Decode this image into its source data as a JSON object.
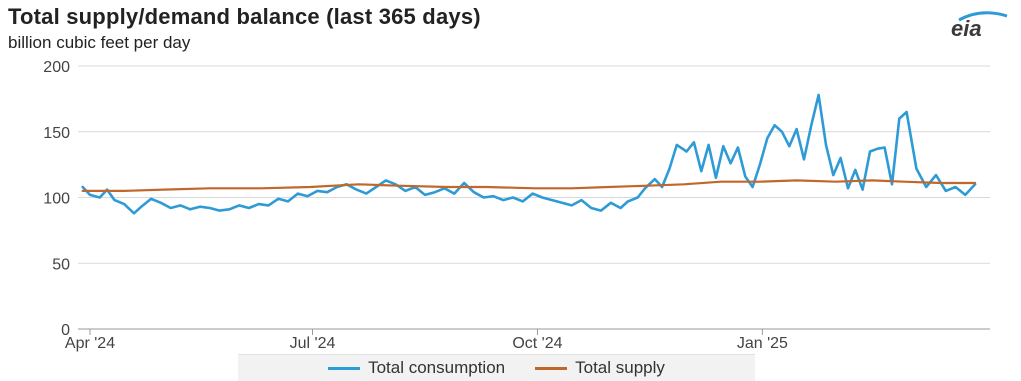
{
  "header": {
    "title": "Total supply/demand balance (last 365 days)",
    "subtitle": "billion cubic feet per day",
    "logo_text": "eia"
  },
  "colors": {
    "consumption": "#2e9bd6",
    "supply": "#c0672b",
    "grid": "#d9d9d9"
  },
  "chart_data": {
    "type": "line",
    "title": "Total supply/demand balance (last 365 days)",
    "ylabel": "billion cubic feet per day",
    "xlabel": "",
    "ylim": [
      0,
      200
    ],
    "yticks": [
      0,
      50,
      100,
      150,
      200
    ],
    "xlim": [
      "2024-04-01",
      "2025-03-31"
    ],
    "xticks": [
      {
        "date": "2024-04-01",
        "label": "Apr '24"
      },
      {
        "date": "2024-07-01",
        "label": "Jul '24"
      },
      {
        "date": "2024-10-01",
        "label": "Oct '24"
      },
      {
        "date": "2025-01-01",
        "label": "Jan '25"
      }
    ],
    "grid": "horizontal",
    "legend": "bottom",
    "series": [
      {
        "name": "Total consumption",
        "x": [
          "2024-03-29",
          "2024-04-01",
          "2024-04-05",
          "2024-04-08",
          "2024-04-11",
          "2024-04-15",
          "2024-04-19",
          "2024-04-22",
          "2024-04-26",
          "2024-04-30",
          "2024-05-04",
          "2024-05-08",
          "2024-05-12",
          "2024-05-16",
          "2024-05-20",
          "2024-05-24",
          "2024-05-28",
          "2024-06-01",
          "2024-06-05",
          "2024-06-09",
          "2024-06-13",
          "2024-06-17",
          "2024-06-21",
          "2024-06-25",
          "2024-06-29",
          "2024-07-03",
          "2024-07-07",
          "2024-07-11",
          "2024-07-15",
          "2024-07-19",
          "2024-07-23",
          "2024-07-27",
          "2024-07-31",
          "2024-08-04",
          "2024-08-08",
          "2024-08-12",
          "2024-08-16",
          "2024-08-20",
          "2024-08-24",
          "2024-08-28",
          "2024-09-01",
          "2024-09-05",
          "2024-09-09",
          "2024-09-13",
          "2024-09-17",
          "2024-09-21",
          "2024-09-25",
          "2024-09-29",
          "2024-10-03",
          "2024-10-07",
          "2024-10-11",
          "2024-10-15",
          "2024-10-19",
          "2024-10-23",
          "2024-10-27",
          "2024-10-31",
          "2024-11-04",
          "2024-11-07",
          "2024-11-11",
          "2024-11-14",
          "2024-11-18",
          "2024-11-21",
          "2024-11-24",
          "2024-11-27",
          "2024-12-01",
          "2024-12-04",
          "2024-12-07",
          "2024-12-10",
          "2024-12-13",
          "2024-12-16",
          "2024-12-19",
          "2024-12-22",
          "2024-12-25",
          "2024-12-28",
          "2024-12-31",
          "2025-01-03",
          "2025-01-06",
          "2025-01-09",
          "2025-01-12",
          "2025-01-15",
          "2025-01-18",
          "2025-01-21",
          "2025-01-24",
          "2025-01-27",
          "2025-01-30",
          "2025-02-02",
          "2025-02-05",
          "2025-02-08",
          "2025-02-11",
          "2025-02-14",
          "2025-02-17",
          "2025-02-20",
          "2025-02-23",
          "2025-02-26",
          "2025-03-01",
          "2025-03-05",
          "2025-03-09",
          "2025-03-13",
          "2025-03-17",
          "2025-03-21",
          "2025-03-25",
          "2025-03-29"
        ],
        "y": [
          108,
          102,
          100,
          106,
          98,
          95,
          88,
          93,
          99,
          96,
          92,
          94,
          91,
          93,
          92,
          90,
          91,
          94,
          92,
          95,
          94,
          99,
          97,
          103,
          101,
          105,
          104,
          108,
          110,
          106,
          103,
          108,
          113,
          110,
          105,
          108,
          102,
          104,
          107,
          103,
          111,
          104,
          100,
          101,
          98,
          100,
          97,
          103,
          100,
          98,
          96,
          94,
          98,
          92,
          90,
          96,
          92,
          97,
          100,
          107,
          114,
          108,
          122,
          140,
          135,
          142,
          120,
          140,
          115,
          139,
          126,
          138,
          116,
          108,
          125,
          145,
          155,
          150,
          139,
          152,
          129,
          155,
          178,
          140,
          117,
          130,
          107,
          121,
          106,
          135,
          137,
          138,
          110,
          160,
          165,
          122,
          108,
          117,
          105,
          108,
          102,
          110
        ]
      },
      {
        "name": "Total supply",
        "x": [
          "2024-03-29",
          "2024-04-15",
          "2024-05-01",
          "2024-05-20",
          "2024-06-10",
          "2024-06-30",
          "2024-07-20",
          "2024-08-05",
          "2024-08-25",
          "2024-09-10",
          "2024-09-30",
          "2024-10-15",
          "2024-10-30",
          "2024-11-15",
          "2024-11-30",
          "2024-12-15",
          "2024-12-31",
          "2025-01-15",
          "2025-01-31",
          "2025-02-15",
          "2025-02-28",
          "2025-03-15",
          "2025-03-29"
        ],
        "y": [
          105,
          105,
          106,
          107,
          107,
          108,
          110,
          109,
          108,
          108,
          107,
          107,
          108,
          109,
          110,
          112,
          112,
          113,
          112,
          113,
          112,
          111,
          111
        ]
      }
    ]
  }
}
